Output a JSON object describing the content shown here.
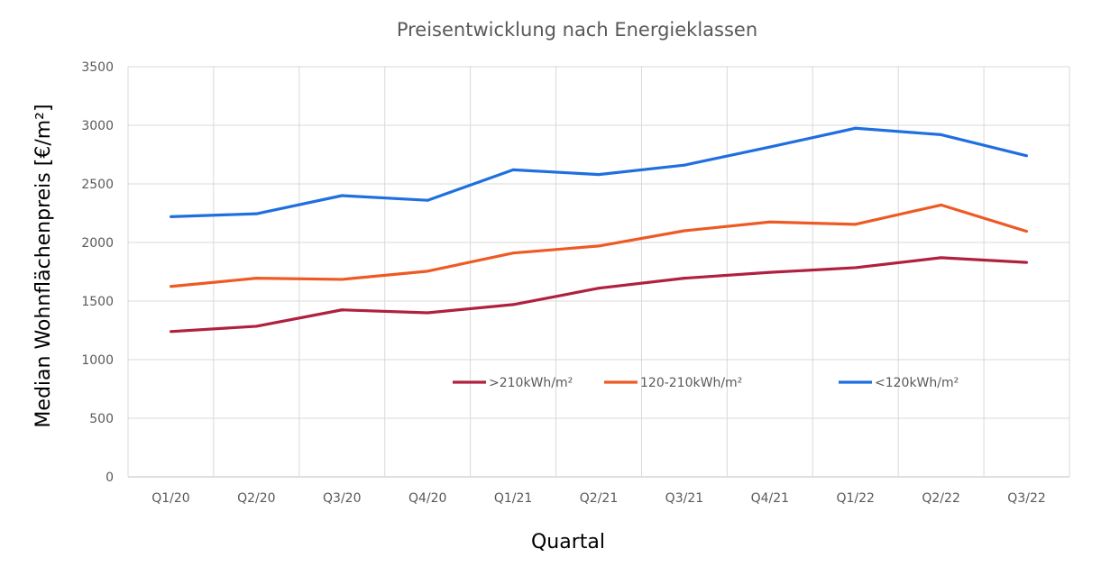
{
  "chart_data": {
    "type": "line",
    "title": "Preisentwicklung nach Energieklassen",
    "xlabel": "Quartal",
    "ylabel": "Median Wohnflächenpreis [€/m²]",
    "ylim": [
      0,
      3500
    ],
    "yticks": [
      0,
      500,
      1000,
      1500,
      2000,
      2500,
      3000,
      3500
    ],
    "grid": true,
    "legend_position": "inside-bottom-center",
    "categories": [
      "Q1/20",
      "Q2/20",
      "Q3/20",
      "Q4/20",
      "Q1/21",
      "Q2/21",
      "Q3/21",
      "Q4/21",
      "Q1/22",
      "Q2/22",
      "Q3/22"
    ],
    "series": [
      {
        "name": ">210kWh/m²",
        "color": "#B0203F",
        "values": [
          1240,
          1285,
          1425,
          1400,
          1470,
          1610,
          1695,
          1745,
          1785,
          1870,
          1830
        ]
      },
      {
        "name": "120-210kWh/m²",
        "color": "#EE5A24",
        "values": [
          1625,
          1695,
          1685,
          1755,
          1910,
          1970,
          2100,
          2175,
          2155,
          2320,
          2095
        ]
      },
      {
        "name": "<120kWh/m²",
        "color": "#1F6FE0",
        "values": [
          2220,
          2245,
          2400,
          2360,
          2620,
          2580,
          2660,
          2815,
          2975,
          2920,
          2740
        ]
      }
    ]
  }
}
